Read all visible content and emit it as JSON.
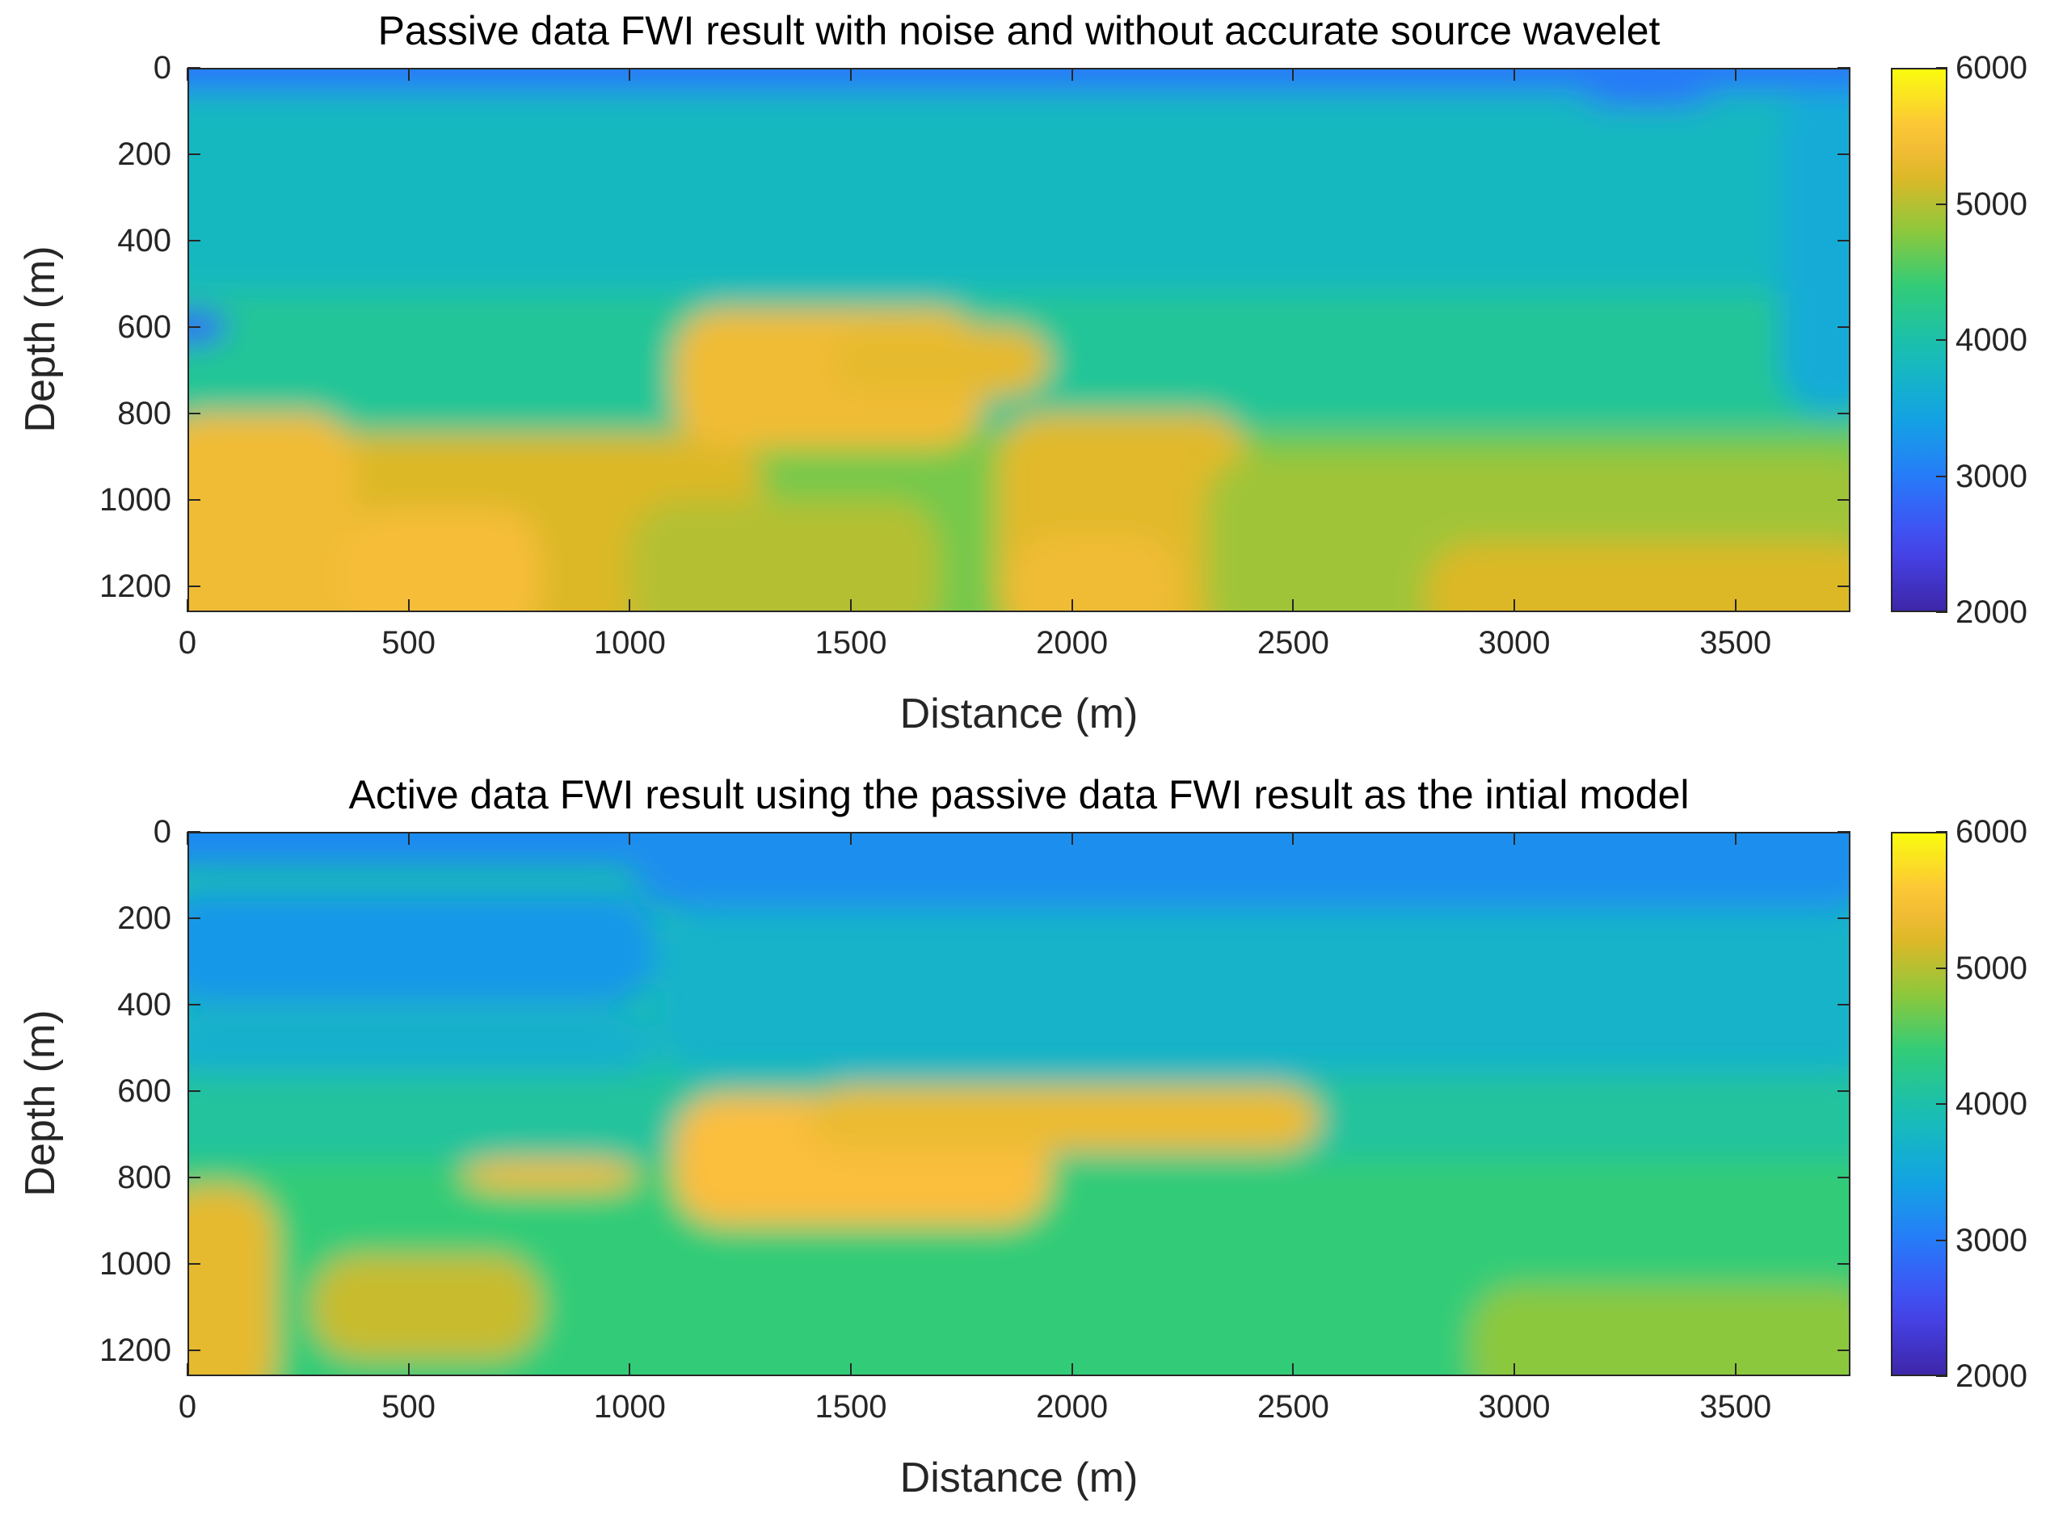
{
  "chart_data": [
    {
      "type": "heatmap",
      "title": "Passive data FWI result with noise and without accurate source wavelet",
      "xlabel": "Distance (m)",
      "ylabel": "Depth (m)",
      "xlim": [
        0,
        3760
      ],
      "ylim": [
        1260,
        0
      ],
      "xticks": [
        "0",
        "500",
        "1000",
        "1500",
        "2000",
        "2500",
        "3000",
        "3500"
      ],
      "yticks": [
        "0",
        "200",
        "400",
        "600",
        "800",
        "1000",
        "1200"
      ],
      "colorbar": {
        "ticks": [
          "6000",
          "5000",
          "4000",
          "3000",
          "2000"
        ],
        "range": [
          2000,
          6000
        ],
        "colormap": "parula"
      },
      "background_value": 3950,
      "features": [
        {
          "x": [
            0,
            3760
          ],
          "y": [
            0,
            55
          ],
          "v": 3000
        },
        {
          "x": [
            0,
            3760
          ],
          "y": [
            55,
            520
          ],
          "v": 3800
        },
        {
          "x": [
            0,
            3760
          ],
          "y": [
            520,
            840
          ],
          "v": 4150
        },
        {
          "x": [
            0,
            3760
          ],
          "y": [
            840,
            1260
          ],
          "v": 4700
        },
        {
          "x": [
            0,
            90
          ],
          "y": [
            560,
            640
          ],
          "v": 2800
        },
        {
          "x": [
            70,
            1300
          ],
          "y": [
            850,
            1260
          ],
          "v": 5200
        },
        {
          "x": [
            0,
            380
          ],
          "y": [
            800,
            1260
          ],
          "v": 5400
        },
        {
          "x": [
            350,
            800
          ],
          "y": [
            1020,
            1260
          ],
          "v": 5450
        },
        {
          "x": [
            1100,
            1800
          ],
          "y": [
            560,
            880
          ],
          "v": 5400
        },
        {
          "x": [
            1450,
            1950
          ],
          "y": [
            600,
            760
          ],
          "v": 5300
        },
        {
          "x": [
            1830,
            2400
          ],
          "y": [
            800,
            1260
          ],
          "v": 5250
        },
        {
          "x": [
            1860,
            2240
          ],
          "y": [
            1080,
            1260
          ],
          "v": 5400
        },
        {
          "x": [
            2300,
            3760
          ],
          "y": [
            900,
            1260
          ],
          "v": 4900
        },
        {
          "x": [
            2800,
            3760
          ],
          "y": [
            1100,
            1260
          ],
          "v": 5200
        },
        {
          "x": [
            1000,
            1700
          ],
          "y": [
            1000,
            1260
          ],
          "v": 5000
        },
        {
          "x": [
            3600,
            3760
          ],
          "y": [
            50,
            800
          ],
          "v": 3550
        },
        {
          "x": [
            3150,
            3450
          ],
          "y": [
            55,
            90
          ],
          "v": 2900
        }
      ]
    },
    {
      "type": "heatmap",
      "title": "Active data FWI result using the passive data FWI result as the intial model",
      "xlabel": "Distance (m)",
      "ylabel": "Depth (m)",
      "xlim": [
        0,
        3760
      ],
      "ylim": [
        1260,
        0
      ],
      "xticks": [
        "0",
        "500",
        "1000",
        "1500",
        "2000",
        "2500",
        "3000",
        "3500"
      ],
      "yticks": [
        "0",
        "200",
        "400",
        "600",
        "800",
        "1000",
        "1200"
      ],
      "colorbar": {
        "ticks": [
          "6000",
          "5000",
          "4000",
          "3000",
          "2000"
        ],
        "range": [
          2000,
          6000
        ],
        "colormap": "parula"
      },
      "background_value": 3950,
      "features": [
        {
          "x": [
            0,
            3760
          ],
          "y": [
            0,
            80
          ],
          "v": 3150
        },
        {
          "x": [
            1000,
            3760
          ],
          "y": [
            0,
            180
          ],
          "v": 3200
        },
        {
          "x": [
            0,
            1060
          ],
          "y": [
            140,
            400
          ],
          "v": 3300
        },
        {
          "x": [
            1060,
            3760
          ],
          "y": [
            180,
            560
          ],
          "v": 3700
        },
        {
          "x": [
            0,
            1060
          ],
          "y": [
            420,
            560
          ],
          "v": 3650
        },
        {
          "x": [
            0,
            3760
          ],
          "y": [
            560,
            760
          ],
          "v": 4100
        },
        {
          "x": [
            0,
            3760
          ],
          "y": [
            760,
            1260
          ],
          "v": 4400
        },
        {
          "x": [
            0,
            200
          ],
          "y": [
            820,
            1260
          ],
          "v": 5300
        },
        {
          "x": [
            280,
            800
          ],
          "y": [
            980,
            1220
          ],
          "v": 5100
        },
        {
          "x": [
            620,
            1020
          ],
          "y": [
            760,
            830
          ],
          "v": 5400
        },
        {
          "x": [
            1100,
            1950
          ],
          "y": [
            610,
            910
          ],
          "v": 5500
        },
        {
          "x": [
            1400,
            2560
          ],
          "y": [
            590,
            740
          ],
          "v": 5350
        },
        {
          "x": [
            2900,
            3760
          ],
          "y": [
            1050,
            1260
          ],
          "v": 4800
        }
      ]
    }
  ]
}
